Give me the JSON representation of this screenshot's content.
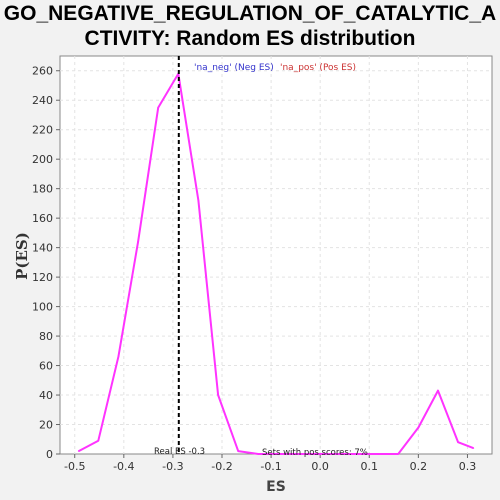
{
  "chart_data": {
    "type": "line",
    "title_lines": [
      "GO_NEGATIVE_REGULATION_OF_CATALYTIC_A",
      "CTIVITY: Random ES distribution"
    ],
    "xlabel": "ES",
    "ylabel": "P(ES)",
    "xlim": [
      -0.53,
      0.35
    ],
    "ylim": [
      0,
      270
    ],
    "x_ticks": [
      -0.5,
      -0.4,
      -0.3,
      -0.2,
      -0.1,
      0.0,
      0.1,
      0.2,
      0.3
    ],
    "x_tick_labels": [
      "-0.5",
      "-0.4",
      "-0.3",
      "-0.2",
      "-0.1",
      "0.0",
      "0.1",
      "0.2",
      "0.3"
    ],
    "y_ticks": [
      0,
      20,
      40,
      60,
      80,
      100,
      120,
      140,
      160,
      180,
      200,
      220,
      240,
      260
    ],
    "y_tick_labels": [
      "0",
      "20",
      "40",
      "60",
      "80",
      "100",
      "120",
      "140",
      "160",
      "180",
      "200",
      "220",
      "240",
      "260"
    ],
    "grid": true,
    "series": [
      {
        "color": "#ff33ff",
        "x": [
          -0.492,
          -0.452,
          -0.411,
          -0.371,
          -0.33,
          -0.289,
          -0.248,
          -0.208,
          -0.167,
          -0.126,
          -0.085,
          -0.045,
          -0.004,
          0.037,
          0.078,
          0.118,
          0.159,
          0.2,
          0.24,
          0.281,
          0.312
        ],
        "y": [
          2,
          9,
          66,
          144,
          235,
          258,
          172,
          40,
          2,
          0,
          0,
          0,
          0,
          0,
          0,
          0,
          0,
          18,
          43,
          8,
          4
        ]
      }
    ],
    "real_es_line": {
      "x": -0.288,
      "color": "#000000",
      "label": "Real ES -0.3"
    },
    "annotations": {
      "neg_label": "'na_neg' (Neg ES)",
      "neg_color": "#3333cc",
      "pos_label": "'na_pos' (Pos ES)",
      "pos_color": "#cc3333",
      "pos_scores": "Sets with pos scores: 7%"
    },
    "plot_background": "#ffffff",
    "page_background": "#f2f2f2"
  }
}
